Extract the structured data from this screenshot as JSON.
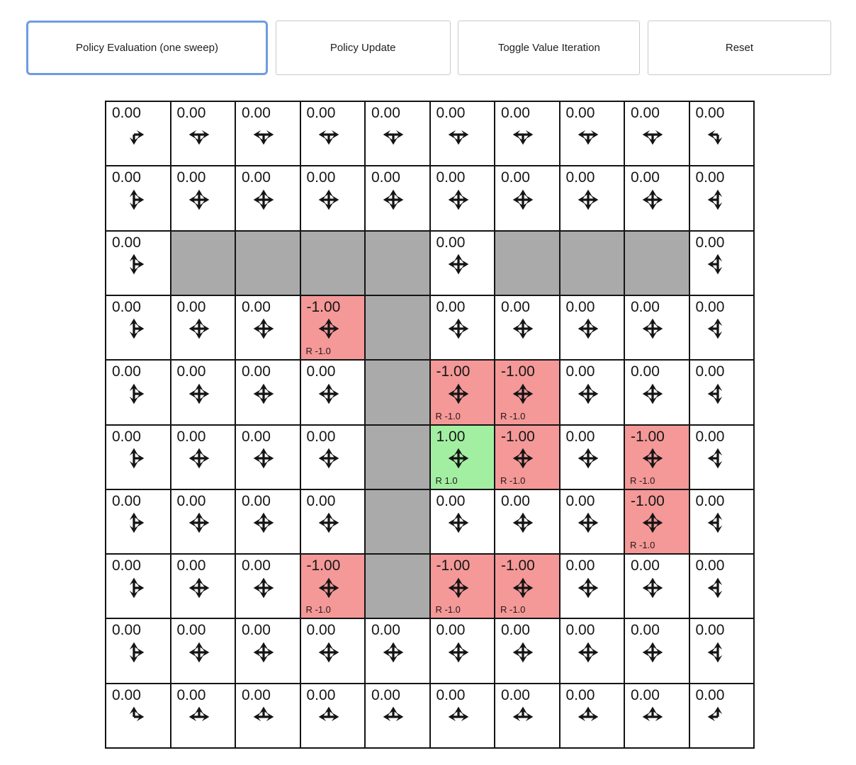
{
  "toolbar": {
    "buttons": [
      {
        "label": "Policy Evaluation (one sweep)",
        "active": true
      },
      {
        "label": "Policy Update",
        "active": false
      },
      {
        "label": "Toggle Value Iteration",
        "active": false
      },
      {
        "label": "Reset",
        "active": false
      }
    ]
  },
  "colors": {
    "normal_cell": "#ffffff",
    "wall_cell": "#aaaaaa",
    "negative_cell": "#f49898",
    "positive_cell": "#a2efa2",
    "grid_line": "#141414",
    "arrow": "#141414",
    "active_button_border": "#6d9ce0"
  },
  "grid": {
    "rows": 10,
    "cols": 10,
    "legend": "arrows: l=left u=up r=right d=down (allowed policy actions); type: normal|wall|negative|positive",
    "cells": [
      [
        {
          "value": "0.00",
          "type": "normal",
          "arrows": "rd",
          "reward": null
        },
        {
          "value": "0.00",
          "type": "normal",
          "arrows": "lrd",
          "reward": null
        },
        {
          "value": "0.00",
          "type": "normal",
          "arrows": "lrd",
          "reward": null
        },
        {
          "value": "0.00",
          "type": "normal",
          "arrows": "lrd",
          "reward": null
        },
        {
          "value": "0.00",
          "type": "normal",
          "arrows": "lrd",
          "reward": null
        },
        {
          "value": "0.00",
          "type": "normal",
          "arrows": "lrd",
          "reward": null
        },
        {
          "value": "0.00",
          "type": "normal",
          "arrows": "lrd",
          "reward": null
        },
        {
          "value": "0.00",
          "type": "normal",
          "arrows": "lrd",
          "reward": null
        },
        {
          "value": "0.00",
          "type": "normal",
          "arrows": "lrd",
          "reward": null
        },
        {
          "value": "0.00",
          "type": "normal",
          "arrows": "ld",
          "reward": null
        }
      ],
      [
        {
          "value": "0.00",
          "type": "normal",
          "arrows": "urd",
          "reward": null
        },
        {
          "value": "0.00",
          "type": "normal",
          "arrows": "lurd",
          "reward": null
        },
        {
          "value": "0.00",
          "type": "normal",
          "arrows": "lurd",
          "reward": null
        },
        {
          "value": "0.00",
          "type": "normal",
          "arrows": "lurd",
          "reward": null
        },
        {
          "value": "0.00",
          "type": "normal",
          "arrows": "lurd",
          "reward": null
        },
        {
          "value": "0.00",
          "type": "normal",
          "arrows": "lurd",
          "reward": null
        },
        {
          "value": "0.00",
          "type": "normal",
          "arrows": "lurd",
          "reward": null
        },
        {
          "value": "0.00",
          "type": "normal",
          "arrows": "lurd",
          "reward": null
        },
        {
          "value": "0.00",
          "type": "normal",
          "arrows": "lurd",
          "reward": null
        },
        {
          "value": "0.00",
          "type": "normal",
          "arrows": "uld",
          "reward": null
        }
      ],
      [
        {
          "value": "0.00",
          "type": "normal",
          "arrows": "urd",
          "reward": null
        },
        {
          "type": "wall"
        },
        {
          "type": "wall"
        },
        {
          "type": "wall"
        },
        {
          "type": "wall"
        },
        {
          "value": "0.00",
          "type": "normal",
          "arrows": "lurd",
          "reward": null
        },
        {
          "type": "wall"
        },
        {
          "type": "wall"
        },
        {
          "type": "wall"
        },
        {
          "value": "0.00",
          "type": "normal",
          "arrows": "uld",
          "reward": null
        }
      ],
      [
        {
          "value": "0.00",
          "type": "normal",
          "arrows": "urd",
          "reward": null
        },
        {
          "value": "0.00",
          "type": "normal",
          "arrows": "lurd",
          "reward": null
        },
        {
          "value": "0.00",
          "type": "normal",
          "arrows": "lurd",
          "reward": null
        },
        {
          "value": "-1.00",
          "type": "negative",
          "arrows": "lurd",
          "reward": "R -1.0"
        },
        {
          "type": "wall"
        },
        {
          "value": "0.00",
          "type": "normal",
          "arrows": "lurd",
          "reward": null
        },
        {
          "value": "0.00",
          "type": "normal",
          "arrows": "lurd",
          "reward": null
        },
        {
          "value": "0.00",
          "type": "normal",
          "arrows": "lurd",
          "reward": null
        },
        {
          "value": "0.00",
          "type": "normal",
          "arrows": "lurd",
          "reward": null
        },
        {
          "value": "0.00",
          "type": "normal",
          "arrows": "uld",
          "reward": null
        }
      ],
      [
        {
          "value": "0.00",
          "type": "normal",
          "arrows": "urd",
          "reward": null
        },
        {
          "value": "0.00",
          "type": "normal",
          "arrows": "lurd",
          "reward": null
        },
        {
          "value": "0.00",
          "type": "normal",
          "arrows": "lurd",
          "reward": null
        },
        {
          "value": "0.00",
          "type": "normal",
          "arrows": "lurd",
          "reward": null
        },
        {
          "type": "wall"
        },
        {
          "value": "-1.00",
          "type": "negative",
          "arrows": "lurd",
          "reward": "R -1.0"
        },
        {
          "value": "-1.00",
          "type": "negative",
          "arrows": "lurd",
          "reward": "R -1.0"
        },
        {
          "value": "0.00",
          "type": "normal",
          "arrows": "lurd",
          "reward": null
        },
        {
          "value": "0.00",
          "type": "normal",
          "arrows": "lurd",
          "reward": null
        },
        {
          "value": "0.00",
          "type": "normal",
          "arrows": "uld",
          "reward": null
        }
      ],
      [
        {
          "value": "0.00",
          "type": "normal",
          "arrows": "urd",
          "reward": null
        },
        {
          "value": "0.00",
          "type": "normal",
          "arrows": "lurd",
          "reward": null
        },
        {
          "value": "0.00",
          "type": "normal",
          "arrows": "lurd",
          "reward": null
        },
        {
          "value": "0.00",
          "type": "normal",
          "arrows": "lurd",
          "reward": null
        },
        {
          "type": "wall"
        },
        {
          "value": "1.00",
          "type": "positive",
          "arrows": "lurd",
          "reward": "R 1.0"
        },
        {
          "value": "-1.00",
          "type": "negative",
          "arrows": "lurd",
          "reward": "R -1.0"
        },
        {
          "value": "0.00",
          "type": "normal",
          "arrows": "lurd",
          "reward": null
        },
        {
          "value": "-1.00",
          "type": "negative",
          "arrows": "lurd",
          "reward": "R -1.0"
        },
        {
          "value": "0.00",
          "type": "normal",
          "arrows": "uld",
          "reward": null
        }
      ],
      [
        {
          "value": "0.00",
          "type": "normal",
          "arrows": "urd",
          "reward": null
        },
        {
          "value": "0.00",
          "type": "normal",
          "arrows": "lurd",
          "reward": null
        },
        {
          "value": "0.00",
          "type": "normal",
          "arrows": "lurd",
          "reward": null
        },
        {
          "value": "0.00",
          "type": "normal",
          "arrows": "lurd",
          "reward": null
        },
        {
          "type": "wall"
        },
        {
          "value": "0.00",
          "type": "normal",
          "arrows": "lurd",
          "reward": null
        },
        {
          "value": "0.00",
          "type": "normal",
          "arrows": "lurd",
          "reward": null
        },
        {
          "value": "0.00",
          "type": "normal",
          "arrows": "lurd",
          "reward": null
        },
        {
          "value": "-1.00",
          "type": "negative",
          "arrows": "lurd",
          "reward": "R -1.0"
        },
        {
          "value": "0.00",
          "type": "normal",
          "arrows": "uld",
          "reward": null
        }
      ],
      [
        {
          "value": "0.00",
          "type": "normal",
          "arrows": "urd",
          "reward": null
        },
        {
          "value": "0.00",
          "type": "normal",
          "arrows": "lurd",
          "reward": null
        },
        {
          "value": "0.00",
          "type": "normal",
          "arrows": "lurd",
          "reward": null
        },
        {
          "value": "-1.00",
          "type": "negative",
          "arrows": "lurd",
          "reward": "R -1.0"
        },
        {
          "type": "wall"
        },
        {
          "value": "-1.00",
          "type": "negative",
          "arrows": "lurd",
          "reward": "R -1.0"
        },
        {
          "value": "-1.00",
          "type": "negative",
          "arrows": "lurd",
          "reward": "R -1.0"
        },
        {
          "value": "0.00",
          "type": "normal",
          "arrows": "lurd",
          "reward": null
        },
        {
          "value": "0.00",
          "type": "normal",
          "arrows": "lurd",
          "reward": null
        },
        {
          "value": "0.00",
          "type": "normal",
          "arrows": "uld",
          "reward": null
        }
      ],
      [
        {
          "value": "0.00",
          "type": "normal",
          "arrows": "urd",
          "reward": null
        },
        {
          "value": "0.00",
          "type": "normal",
          "arrows": "lurd",
          "reward": null
        },
        {
          "value": "0.00",
          "type": "normal",
          "arrows": "lurd",
          "reward": null
        },
        {
          "value": "0.00",
          "type": "normal",
          "arrows": "lurd",
          "reward": null
        },
        {
          "value": "0.00",
          "type": "normal",
          "arrows": "lurd",
          "reward": null
        },
        {
          "value": "0.00",
          "type": "normal",
          "arrows": "lurd",
          "reward": null
        },
        {
          "value": "0.00",
          "type": "normal",
          "arrows": "lurd",
          "reward": null
        },
        {
          "value": "0.00",
          "type": "normal",
          "arrows": "lurd",
          "reward": null
        },
        {
          "value": "0.00",
          "type": "normal",
          "arrows": "lurd",
          "reward": null
        },
        {
          "value": "0.00",
          "type": "normal",
          "arrows": "uld",
          "reward": null
        }
      ],
      [
        {
          "value": "0.00",
          "type": "normal",
          "arrows": "ur",
          "reward": null
        },
        {
          "value": "0.00",
          "type": "normal",
          "arrows": "lur",
          "reward": null
        },
        {
          "value": "0.00",
          "type": "normal",
          "arrows": "lur",
          "reward": null
        },
        {
          "value": "0.00",
          "type": "normal",
          "arrows": "lur",
          "reward": null
        },
        {
          "value": "0.00",
          "type": "normal",
          "arrows": "lur",
          "reward": null
        },
        {
          "value": "0.00",
          "type": "normal",
          "arrows": "lur",
          "reward": null
        },
        {
          "value": "0.00",
          "type": "normal",
          "arrows": "lur",
          "reward": null
        },
        {
          "value": "0.00",
          "type": "normal",
          "arrows": "lur",
          "reward": null
        },
        {
          "value": "0.00",
          "type": "normal",
          "arrows": "lur",
          "reward": null
        },
        {
          "value": "0.00",
          "type": "normal",
          "arrows": "ul",
          "reward": null
        }
      ]
    ]
  }
}
